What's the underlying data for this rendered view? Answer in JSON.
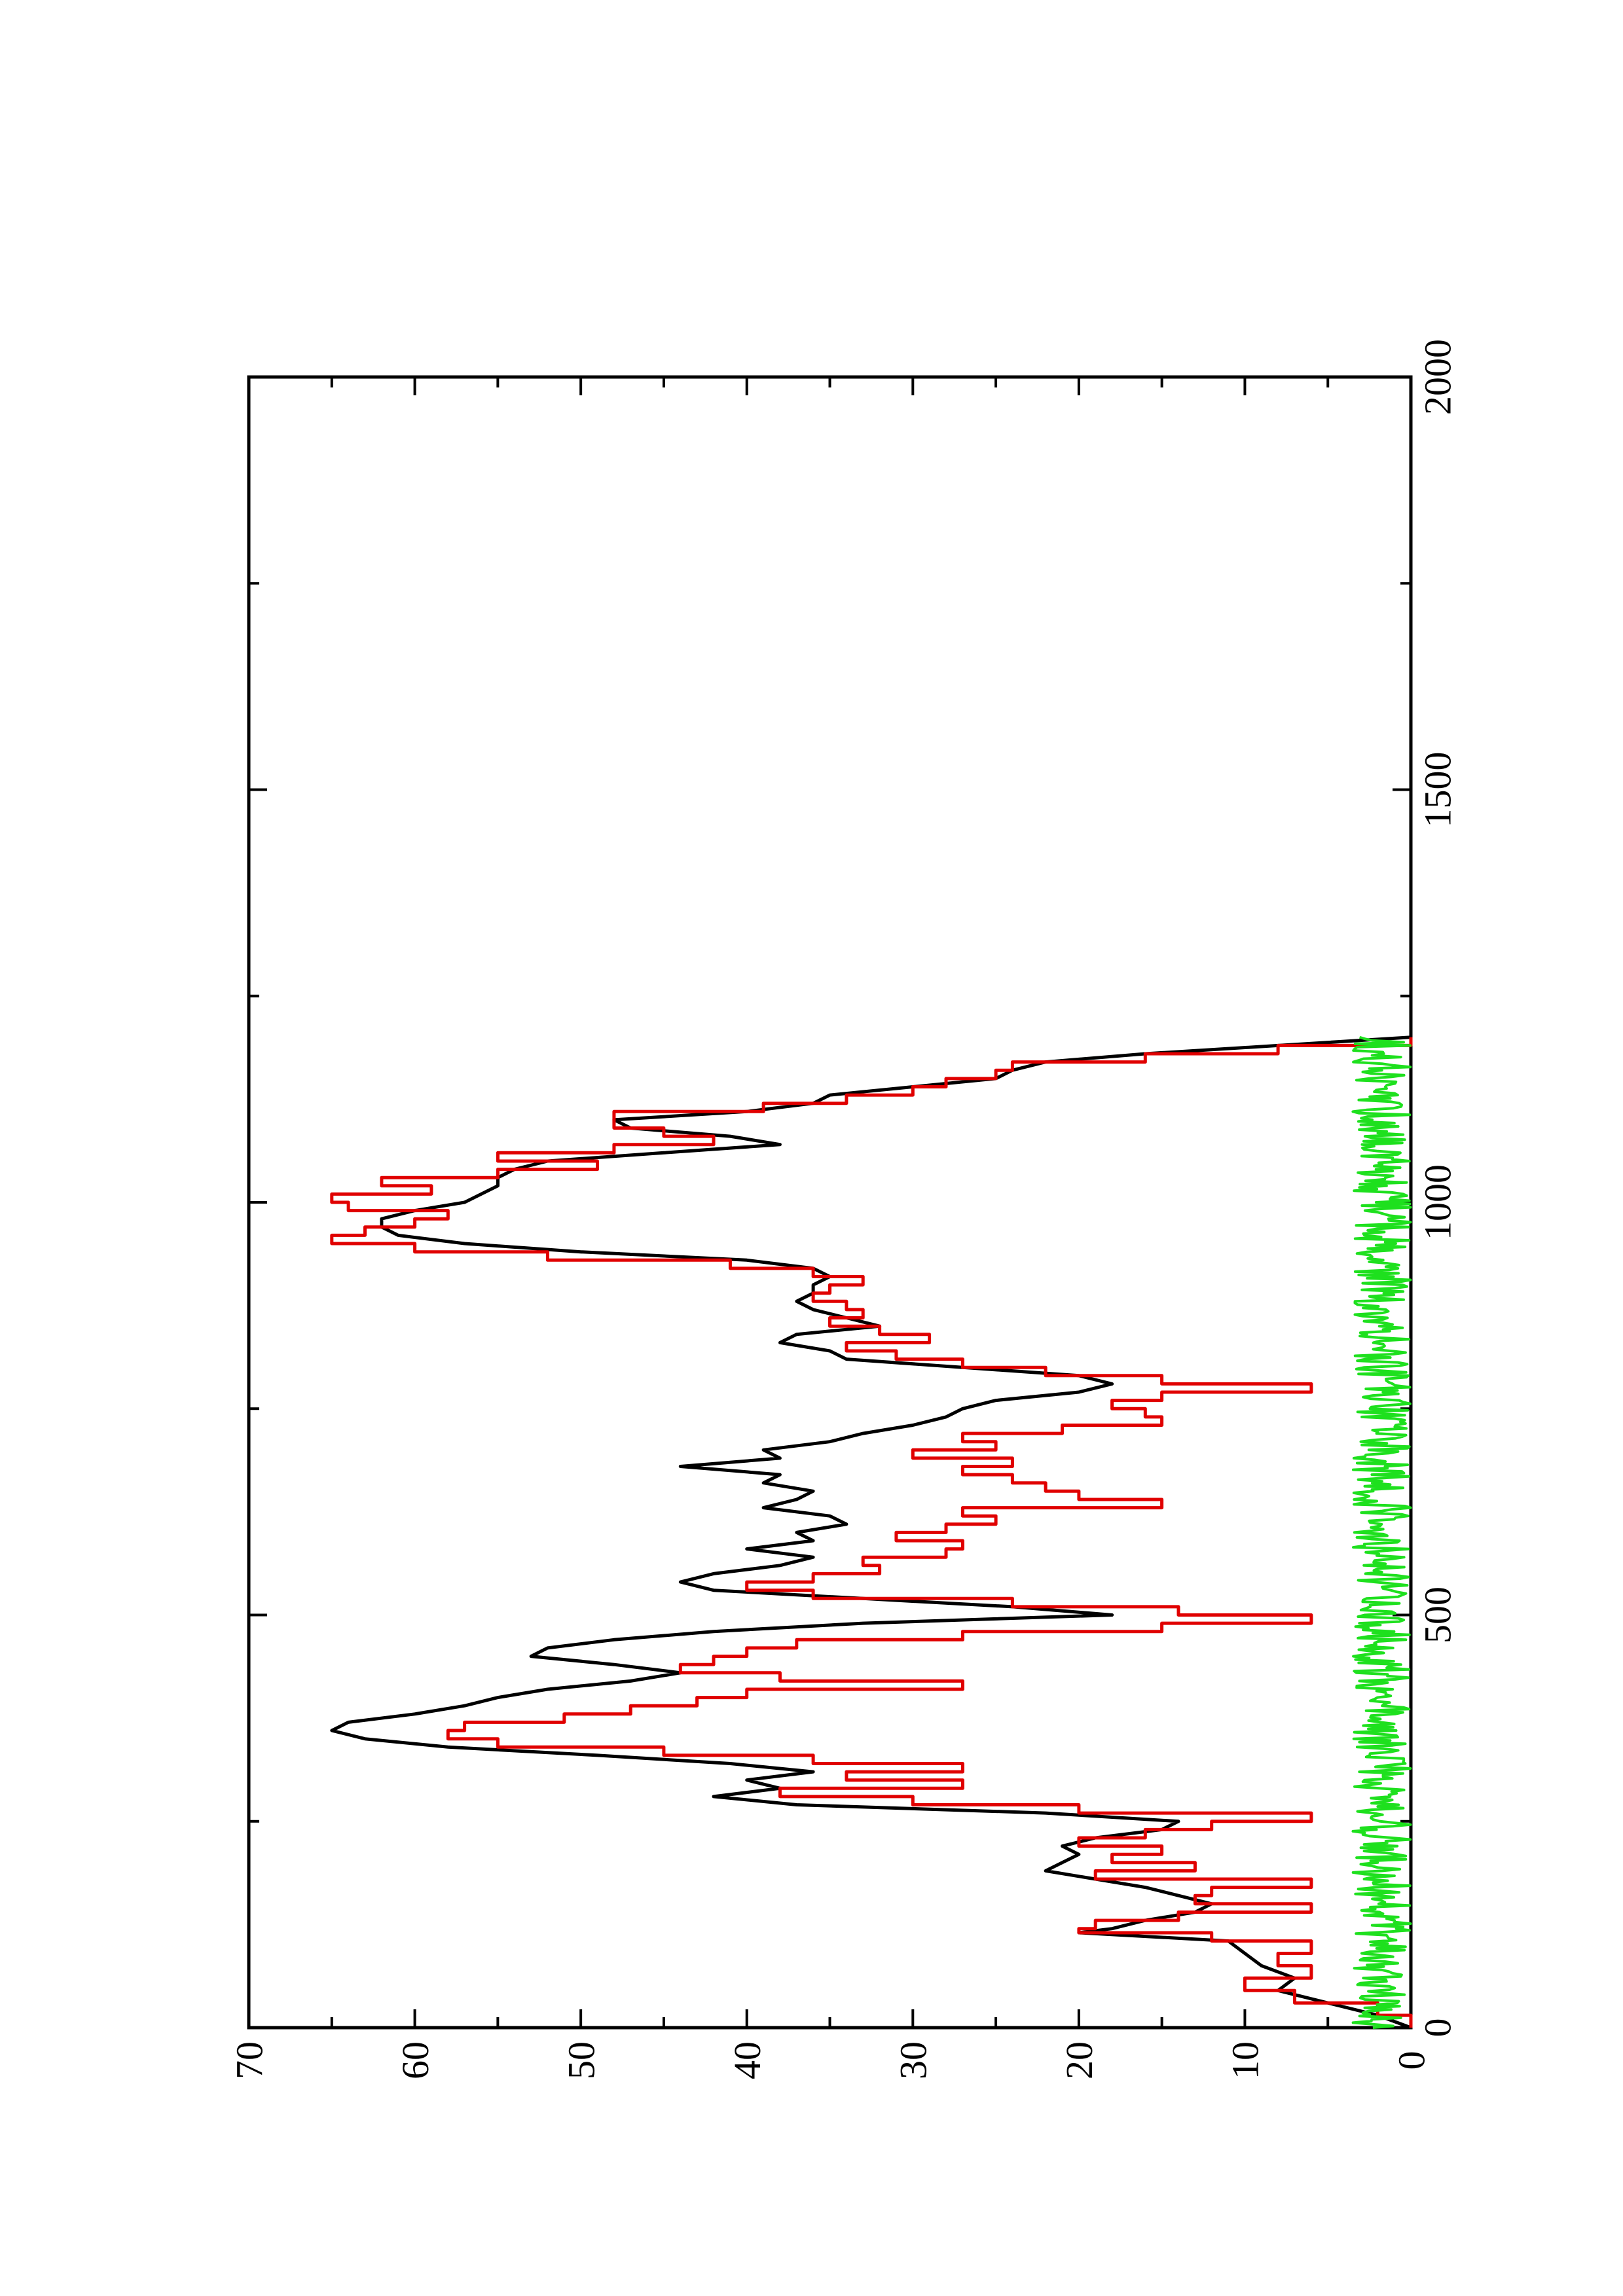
{
  "chart_data": {
    "type": "line",
    "title": "",
    "xlabel": "",
    "ylabel": "",
    "xlim": [
      0,
      2000
    ],
    "ylim": [
      0,
      70
    ],
    "x_ticks": [
      0,
      500,
      1000,
      1500,
      2000
    ],
    "x_tick_labels": [
      "0",
      "500",
      "1000",
      "1500",
      "2000"
    ],
    "y_ticks": [
      0,
      10,
      20,
      30,
      40,
      50,
      60,
      70
    ],
    "y_tick_labels": [
      "0",
      "10",
      "20",
      "30",
      "40",
      "50",
      "60",
      "70"
    ],
    "grid": false,
    "legend": "none",
    "orientation": "rotated-90-ccw",
    "series": [
      {
        "color": "#000000",
        "style": "line",
        "x": [
          0,
          15,
          30,
          45,
          60,
          75,
          90,
          105,
          115,
          120,
          130,
          140,
          150,
          160,
          170,
          180,
          190,
          200,
          210,
          220,
          230,
          240,
          250,
          260,
          270,
          280,
          290,
          300,
          310,
          320,
          330,
          340,
          350,
          360,
          370,
          380,
          390,
          400,
          410,
          420,
          430,
          440,
          450,
          460,
          470,
          480,
          490,
          500,
          510,
          520,
          530,
          540,
          550,
          560,
          570,
          580,
          590,
          600,
          610,
          620,
          630,
          640,
          650,
          660,
          670,
          680,
          690,
          700,
          710,
          720,
          730,
          740,
          750,
          760,
          770,
          780,
          790,
          800,
          810,
          820,
          830,
          840,
          850,
          860,
          870,
          880,
          890,
          900,
          910,
          920,
          930,
          940,
          950,
          960,
          970,
          980,
          990,
          1000,
          1010,
          1020,
          1030,
          1040,
          1050,
          1060,
          1070,
          1080,
          1090,
          1100,
          1110,
          1120,
          1130,
          1140,
          1150,
          1160,
          1170,
          1180,
          1190,
          1200
        ],
        "y": [
          0,
          2,
          5,
          8,
          7,
          9,
          10,
          11,
          20,
          18,
          16,
          13,
          12,
          14,
          16,
          19,
          22,
          21,
          20,
          21,
          19,
          15,
          14,
          22,
          37,
          42,
          38,
          40,
          36,
          41,
          49,
          58,
          63,
          65,
          64,
          60,
          57,
          55,
          52,
          47,
          44,
          48,
          53,
          52,
          48,
          42,
          33,
          18,
          24,
          33,
          42,
          44,
          42,
          38,
          36,
          40,
          36,
          37,
          34,
          35,
          39,
          37,
          36,
          39,
          38,
          44,
          38,
          39,
          35,
          33,
          30,
          28,
          27,
          25,
          20,
          18,
          20,
          27,
          34,
          35,
          38,
          37,
          32,
          34,
          36,
          37,
          36,
          36,
          35,
          36,
          40,
          50,
          57,
          61,
          62,
          62,
          60,
          57,
          56,
          55,
          55,
          54,
          52,
          45,
          38,
          41,
          47,
          48,
          40,
          36,
          35,
          30,
          25,
          24,
          22,
          16,
          8,
          0
        ],
        "name": ""
      },
      {
        "color": "#e00000",
        "style": "step",
        "x": [
          0,
          15,
          30,
          45,
          60,
          75,
          90,
          105,
          115,
          120,
          130,
          140,
          150,
          160,
          170,
          180,
          190,
          200,
          210,
          220,
          230,
          240,
          250,
          260,
          270,
          280,
          290,
          300,
          310,
          320,
          330,
          340,
          350,
          360,
          370,
          380,
          390,
          400,
          410,
          420,
          430,
          440,
          450,
          460,
          470,
          480,
          490,
          500,
          510,
          520,
          530,
          540,
          550,
          560,
          570,
          580,
          590,
          600,
          610,
          620,
          630,
          640,
          650,
          660,
          670,
          680,
          690,
          700,
          710,
          720,
          730,
          740,
          750,
          760,
          770,
          780,
          790,
          800,
          810,
          820,
          830,
          840,
          850,
          860,
          870,
          880,
          890,
          900,
          910,
          920,
          930,
          940,
          950,
          960,
          970,
          980,
          990,
          1000,
          1010,
          1020,
          1030,
          1040,
          1050,
          1060,
          1070,
          1080,
          1090,
          1100,
          1110,
          1120,
          1130,
          1140,
          1150,
          1160,
          1170,
          1180,
          1190,
          1200
        ],
        "y": [
          0,
          2,
          7,
          10,
          6,
          8,
          6,
          12,
          20,
          19,
          14,
          6,
          13,
          12,
          6,
          19,
          13,
          18,
          15,
          20,
          16,
          12,
          6,
          20,
          30,
          38,
          27,
          34,
          27,
          36,
          45,
          55,
          58,
          57,
          51,
          47,
          43,
          40,
          27,
          38,
          44,
          42,
          40,
          37,
          27,
          15,
          6,
          14,
          24,
          36,
          40,
          36,
          32,
          33,
          28,
          27,
          31,
          28,
          25,
          27,
          15,
          20,
          22,
          24,
          27,
          24,
          30,
          25,
          27,
          21,
          15,
          16,
          18,
          15,
          6,
          15,
          22,
          27,
          31,
          34,
          29,
          32,
          35,
          33,
          34,
          36,
          35,
          33,
          36,
          41,
          52,
          60,
          65,
          63,
          60,
          58,
          64,
          65,
          59,
          62,
          55,
          49,
          55,
          48,
          42,
          45,
          48,
          48,
          39,
          34,
          30,
          28,
          25,
          24,
          16,
          8,
          0,
          0
        ],
        "name": ""
      },
      {
        "color": "#1ee01e",
        "style": "noise",
        "x_range": [
          0,
          1200
        ],
        "y_range": [
          0,
          3.5
        ],
        "name": ""
      }
    ]
  }
}
